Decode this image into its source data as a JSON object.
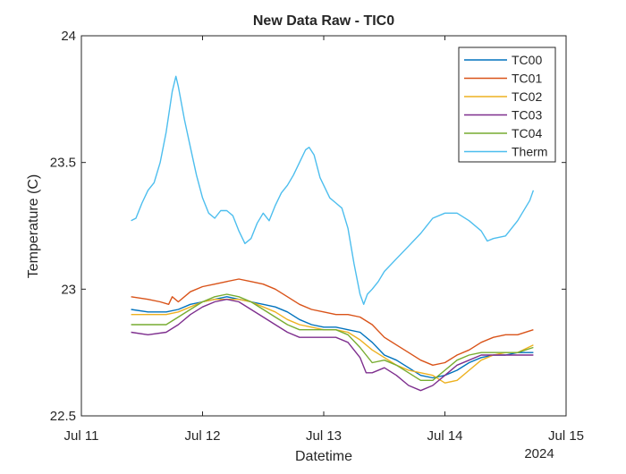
{
  "chart_data": {
    "type": "line",
    "title": "New Data Raw - TIC0",
    "xlabel": "Datetime",
    "ylabel": "Temperature (C)",
    "x_ticks": [
      "Jul 11",
      "Jul 12",
      "Jul 13",
      "Jul 14",
      "Jul 15"
    ],
    "x_tick_values": [
      0,
      1,
      2,
      3,
      4
    ],
    "x_year_label": "2024",
    "xlim": [
      0,
      4
    ],
    "ylim": [
      22.5,
      24
    ],
    "y_ticks": [
      22.5,
      23,
      23.5,
      24
    ],
    "y_tick_labels": [
      "22.5",
      "23",
      "23.5",
      "24"
    ],
    "grid": false,
    "legend_position": "top-right",
    "series": [
      {
        "name": "TC00",
        "color": "#0072BD",
        "points": [
          [
            0.41,
            22.92
          ],
          [
            0.55,
            22.91
          ],
          [
            0.7,
            22.91
          ],
          [
            0.8,
            22.92
          ],
          [
            0.9,
            22.94
          ],
          [
            1.0,
            22.95
          ],
          [
            1.1,
            22.96
          ],
          [
            1.2,
            22.97
          ],
          [
            1.3,
            22.96
          ],
          [
            1.4,
            22.95
          ],
          [
            1.5,
            22.94
          ],
          [
            1.6,
            22.93
          ],
          [
            1.7,
            22.91
          ],
          [
            1.8,
            22.88
          ],
          [
            1.9,
            22.86
          ],
          [
            2.0,
            22.85
          ],
          [
            2.1,
            22.85
          ],
          [
            2.2,
            22.84
          ],
          [
            2.3,
            22.83
          ],
          [
            2.4,
            22.79
          ],
          [
            2.5,
            22.74
          ],
          [
            2.6,
            22.72
          ],
          [
            2.7,
            22.69
          ],
          [
            2.8,
            22.66
          ],
          [
            2.9,
            22.65
          ],
          [
            3.0,
            22.66
          ],
          [
            3.1,
            22.68
          ],
          [
            3.2,
            22.71
          ],
          [
            3.3,
            22.73
          ],
          [
            3.4,
            22.74
          ],
          [
            3.5,
            22.74
          ],
          [
            3.6,
            22.75
          ],
          [
            3.73,
            22.75
          ]
        ]
      },
      {
        "name": "TC01",
        "color": "#D95319",
        "points": [
          [
            0.41,
            22.97
          ],
          [
            0.55,
            22.96
          ],
          [
            0.65,
            22.95
          ],
          [
            0.72,
            22.94
          ],
          [
            0.75,
            22.97
          ],
          [
            0.8,
            22.95
          ],
          [
            0.9,
            22.99
          ],
          [
            1.0,
            23.01
          ],
          [
            1.1,
            23.02
          ],
          [
            1.2,
            23.03
          ],
          [
            1.3,
            23.04
          ],
          [
            1.4,
            23.03
          ],
          [
            1.5,
            23.02
          ],
          [
            1.6,
            23.0
          ],
          [
            1.7,
            22.97
          ],
          [
            1.8,
            22.94
          ],
          [
            1.9,
            22.92
          ],
          [
            2.0,
            22.91
          ],
          [
            2.1,
            22.9
          ],
          [
            2.2,
            22.9
          ],
          [
            2.3,
            22.89
          ],
          [
            2.4,
            22.86
          ],
          [
            2.5,
            22.81
          ],
          [
            2.6,
            22.78
          ],
          [
            2.7,
            22.75
          ],
          [
            2.8,
            22.72
          ],
          [
            2.9,
            22.7
          ],
          [
            3.0,
            22.71
          ],
          [
            3.1,
            22.74
          ],
          [
            3.2,
            22.76
          ],
          [
            3.3,
            22.79
          ],
          [
            3.4,
            22.81
          ],
          [
            3.5,
            22.82
          ],
          [
            3.6,
            22.82
          ],
          [
            3.73,
            22.84
          ]
        ]
      },
      {
        "name": "TC02",
        "color": "#EDB120",
        "points": [
          [
            0.41,
            22.9
          ],
          [
            0.55,
            22.9
          ],
          [
            0.7,
            22.9
          ],
          [
            0.8,
            22.91
          ],
          [
            0.9,
            22.93
          ],
          [
            1.0,
            22.95
          ],
          [
            1.1,
            22.96
          ],
          [
            1.2,
            22.96
          ],
          [
            1.3,
            22.96
          ],
          [
            1.4,
            22.95
          ],
          [
            1.5,
            22.93
          ],
          [
            1.6,
            22.91
          ],
          [
            1.7,
            22.88
          ],
          [
            1.8,
            22.86
          ],
          [
            1.9,
            22.85
          ],
          [
            2.0,
            22.84
          ],
          [
            2.1,
            22.84
          ],
          [
            2.2,
            22.83
          ],
          [
            2.3,
            22.8
          ],
          [
            2.4,
            22.76
          ],
          [
            2.5,
            22.73
          ],
          [
            2.6,
            22.7
          ],
          [
            2.7,
            22.68
          ],
          [
            2.8,
            22.67
          ],
          [
            2.9,
            22.66
          ],
          [
            3.0,
            22.63
          ],
          [
            3.1,
            22.64
          ],
          [
            3.2,
            22.68
          ],
          [
            3.3,
            22.72
          ],
          [
            3.4,
            22.74
          ],
          [
            3.5,
            22.75
          ],
          [
            3.6,
            22.75
          ],
          [
            3.73,
            22.78
          ]
        ]
      },
      {
        "name": "TC03",
        "color": "#7E2F8E",
        "points": [
          [
            0.41,
            22.83
          ],
          [
            0.55,
            22.82
          ],
          [
            0.7,
            22.83
          ],
          [
            0.8,
            22.86
          ],
          [
            0.9,
            22.9
          ],
          [
            1.0,
            22.93
          ],
          [
            1.1,
            22.95
          ],
          [
            1.2,
            22.96
          ],
          [
            1.3,
            22.95
          ],
          [
            1.4,
            22.92
          ],
          [
            1.5,
            22.89
          ],
          [
            1.6,
            22.86
          ],
          [
            1.7,
            22.83
          ],
          [
            1.8,
            22.81
          ],
          [
            1.9,
            22.81
          ],
          [
            2.0,
            22.81
          ],
          [
            2.1,
            22.81
          ],
          [
            2.2,
            22.79
          ],
          [
            2.3,
            22.73
          ],
          [
            2.35,
            22.67
          ],
          [
            2.4,
            22.67
          ],
          [
            2.5,
            22.69
          ],
          [
            2.6,
            22.66
          ],
          [
            2.7,
            22.62
          ],
          [
            2.8,
            22.6
          ],
          [
            2.9,
            22.62
          ],
          [
            3.0,
            22.66
          ],
          [
            3.1,
            22.7
          ],
          [
            3.2,
            22.72
          ],
          [
            3.3,
            22.74
          ],
          [
            3.4,
            22.74
          ],
          [
            3.5,
            22.74
          ],
          [
            3.6,
            22.74
          ],
          [
            3.73,
            22.74
          ]
        ]
      },
      {
        "name": "TC04",
        "color": "#77AC30",
        "points": [
          [
            0.41,
            22.86
          ],
          [
            0.55,
            22.86
          ],
          [
            0.7,
            22.86
          ],
          [
            0.8,
            22.89
          ],
          [
            0.9,
            22.92
          ],
          [
            1.0,
            22.95
          ],
          [
            1.1,
            22.97
          ],
          [
            1.2,
            22.98
          ],
          [
            1.3,
            22.97
          ],
          [
            1.4,
            22.95
          ],
          [
            1.5,
            22.92
          ],
          [
            1.6,
            22.89
          ],
          [
            1.7,
            22.86
          ],
          [
            1.8,
            22.84
          ],
          [
            1.9,
            22.84
          ],
          [
            2.0,
            22.84
          ],
          [
            2.1,
            22.84
          ],
          [
            2.2,
            22.82
          ],
          [
            2.3,
            22.77
          ],
          [
            2.4,
            22.71
          ],
          [
            2.5,
            22.72
          ],
          [
            2.6,
            22.7
          ],
          [
            2.7,
            22.67
          ],
          [
            2.8,
            22.64
          ],
          [
            2.9,
            22.64
          ],
          [
            3.0,
            22.68
          ],
          [
            3.1,
            22.72
          ],
          [
            3.2,
            22.74
          ],
          [
            3.3,
            22.75
          ],
          [
            3.4,
            22.75
          ],
          [
            3.5,
            22.75
          ],
          [
            3.6,
            22.75
          ],
          [
            3.73,
            22.77
          ]
        ]
      },
      {
        "name": "Therm",
        "color": "#4DBEEE",
        "points": [
          [
            0.41,
            23.27
          ],
          [
            0.45,
            23.28
          ],
          [
            0.5,
            23.34
          ],
          [
            0.55,
            23.39
          ],
          [
            0.6,
            23.42
          ],
          [
            0.65,
            23.5
          ],
          [
            0.7,
            23.62
          ],
          [
            0.75,
            23.78
          ],
          [
            0.78,
            23.84
          ],
          [
            0.8,
            23.8
          ],
          [
            0.85,
            23.67
          ],
          [
            0.9,
            23.56
          ],
          [
            0.95,
            23.45
          ],
          [
            1.0,
            23.36
          ],
          [
            1.05,
            23.3
          ],
          [
            1.1,
            23.28
          ],
          [
            1.15,
            23.31
          ],
          [
            1.2,
            23.31
          ],
          [
            1.25,
            23.29
          ],
          [
            1.3,
            23.23
          ],
          [
            1.35,
            23.18
          ],
          [
            1.4,
            23.2
          ],
          [
            1.45,
            23.26
          ],
          [
            1.5,
            23.3
          ],
          [
            1.55,
            23.27
          ],
          [
            1.6,
            23.33
          ],
          [
            1.65,
            23.38
          ],
          [
            1.7,
            23.41
          ],
          [
            1.75,
            23.45
          ],
          [
            1.8,
            23.5
          ],
          [
            1.85,
            23.55
          ],
          [
            1.88,
            23.56
          ],
          [
            1.92,
            23.53
          ],
          [
            1.97,
            23.44
          ],
          [
            2.05,
            23.36
          ],
          [
            2.1,
            23.34
          ],
          [
            2.15,
            23.32
          ],
          [
            2.2,
            23.24
          ],
          [
            2.25,
            23.1
          ],
          [
            2.3,
            22.98
          ],
          [
            2.33,
            22.94
          ],
          [
            2.36,
            22.98
          ],
          [
            2.4,
            23.0
          ],
          [
            2.45,
            23.03
          ],
          [
            2.5,
            23.07
          ],
          [
            2.6,
            23.12
          ],
          [
            2.7,
            23.17
          ],
          [
            2.8,
            23.22
          ],
          [
            2.9,
            23.28
          ],
          [
            3.0,
            23.3
          ],
          [
            3.1,
            23.3
          ],
          [
            3.2,
            23.27
          ],
          [
            3.3,
            23.23
          ],
          [
            3.35,
            23.19
          ],
          [
            3.4,
            23.2
          ],
          [
            3.5,
            23.21
          ],
          [
            3.6,
            23.27
          ],
          [
            3.7,
            23.35
          ],
          [
            3.73,
            23.39
          ]
        ]
      }
    ]
  }
}
